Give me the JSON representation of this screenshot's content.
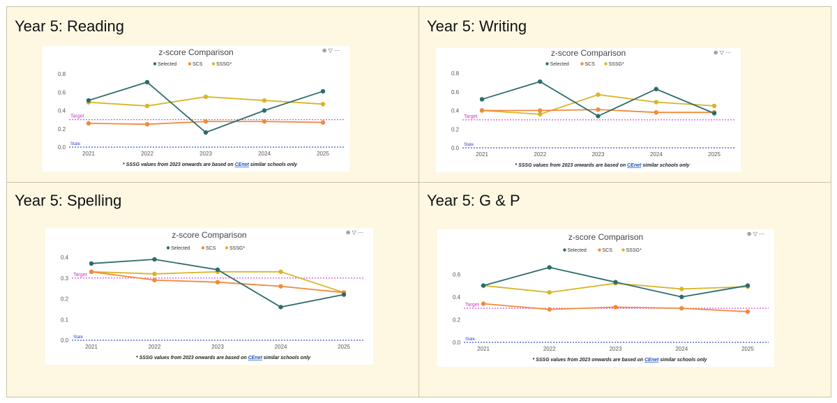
{
  "panels": [
    {
      "title": "Year 5: Reading"
    },
    {
      "title": "Year 5: Writing"
    },
    {
      "title": "Year 5: Spelling"
    },
    {
      "title": "Year 5: G & P"
    }
  ],
  "chart_data": [
    {
      "type": "line",
      "title": "z-score Comparison",
      "legend_placement": "top-center",
      "x": [
        "2021",
        "2022",
        "2023",
        "2024",
        "2025"
      ],
      "ylim": [
        0,
        0.8
      ],
      "yticks": [
        "0.0",
        "0.2",
        "0.4",
        "0.6",
        "0.8"
      ],
      "series": [
        {
          "name": "Selected",
          "color": "#2d6b6b",
          "values": [
            0.51,
            0.71,
            0.16,
            0.4,
            0.61
          ]
        },
        {
          "name": "SCS",
          "color": "#f28a3a",
          "values": [
            0.26,
            0.25,
            0.28,
            0.28,
            0.27
          ]
        },
        {
          "name": "SSSG*",
          "color": "#d9b526",
          "values": [
            0.49,
            0.45,
            0.55,
            0.51,
            0.47
          ]
        }
      ],
      "reference_lines": [
        {
          "label": "Target",
          "value": 0.3,
          "color": "#d64fd6"
        },
        {
          "label": "State",
          "value": 0.0,
          "color": "#3a4fd1"
        }
      ],
      "note_prefix": "* SSSG values from 2023 onwards are based on ",
      "note_link": "CEnet",
      "note_suffix": " similar schools only"
    },
    {
      "type": "line",
      "title": "z-score Comparison",
      "legend_placement": "top-center",
      "x": [
        "2021",
        "2022",
        "2023",
        "2024",
        "2025"
      ],
      "ylim": [
        0,
        0.8
      ],
      "yticks": [
        "0.0",
        "0.2",
        "0.4",
        "0.6",
        "0.8"
      ],
      "series": [
        {
          "name": "Selected",
          "color": "#2d6b6b",
          "values": [
            0.52,
            0.71,
            0.34,
            0.63,
            0.37
          ]
        },
        {
          "name": "SCS",
          "color": "#f28a3a",
          "values": [
            0.4,
            0.4,
            0.41,
            0.38,
            0.38
          ]
        },
        {
          "name": "SSSG*",
          "color": "#d9b526",
          "values": [
            0.4,
            0.36,
            0.57,
            0.49,
            0.45
          ]
        }
      ],
      "reference_lines": [
        {
          "label": "Target",
          "value": 0.3,
          "color": "#d64fd6"
        },
        {
          "label": "State",
          "value": 0.0,
          "color": "#3a4fd1"
        }
      ],
      "note_prefix": "* SSSG values from 2023 onwards are based on ",
      "note_link": "CEnet",
      "note_suffix": " similar schools only"
    },
    {
      "type": "line",
      "title": "z-score Comparison",
      "legend_placement": "top-center",
      "x": [
        "2021",
        "2022",
        "2023",
        "2024",
        "2025"
      ],
      "ylim": [
        0,
        0.4
      ],
      "yticks": [
        "0.0",
        "0.1",
        "0.2",
        "0.3",
        "0.4"
      ],
      "series": [
        {
          "name": "Selected",
          "color": "#2d6b6b",
          "values": [
            0.37,
            0.39,
            0.34,
            0.16,
            0.22
          ]
        },
        {
          "name": "SCS",
          "color": "#f28a3a",
          "values": [
            0.33,
            0.29,
            0.28,
            0.26,
            0.23
          ]
        },
        {
          "name": "SSSG*",
          "color": "#d9b526",
          "values": [
            0.33,
            0.32,
            0.33,
            0.33,
            0.23
          ]
        }
      ],
      "reference_lines": [
        {
          "label": "Target",
          "value": 0.3,
          "color": "#d64fd6"
        },
        {
          "label": "State",
          "value": 0.0,
          "color": "#3a4fd1"
        }
      ],
      "note_prefix": "* SSSG values from 2023 onwards are based on ",
      "note_link": "CEnet",
      "note_suffix": " similar schools only"
    },
    {
      "type": "line",
      "title": "z-score Comparison",
      "legend_placement": "top-center",
      "x": [
        "2021",
        "2022",
        "2023",
        "2024",
        "2025"
      ],
      "ylim": [
        0,
        0.7
      ],
      "yticks": [
        "0.0",
        "0.2",
        "0.4",
        "0.6"
      ],
      "series": [
        {
          "name": "Selected",
          "color": "#2d6b6b",
          "values": [
            0.5,
            0.66,
            0.53,
            0.4,
            0.5
          ]
        },
        {
          "name": "SCS",
          "color": "#f28a3a",
          "values": [
            0.34,
            0.29,
            0.31,
            0.3,
            0.27
          ]
        },
        {
          "name": "SSSG*",
          "color": "#d9b526",
          "values": [
            0.5,
            0.44,
            0.52,
            0.47,
            0.49
          ]
        }
      ],
      "reference_lines": [
        {
          "label": "Target",
          "value": 0.3,
          "color": "#d64fd6"
        },
        {
          "label": "State",
          "value": 0.0,
          "color": "#3a4fd1"
        }
      ],
      "note_prefix": "* SSSG values from 2023 onwards are based on ",
      "note_link": "CEnet",
      "note_suffix": " similar schools only"
    }
  ]
}
